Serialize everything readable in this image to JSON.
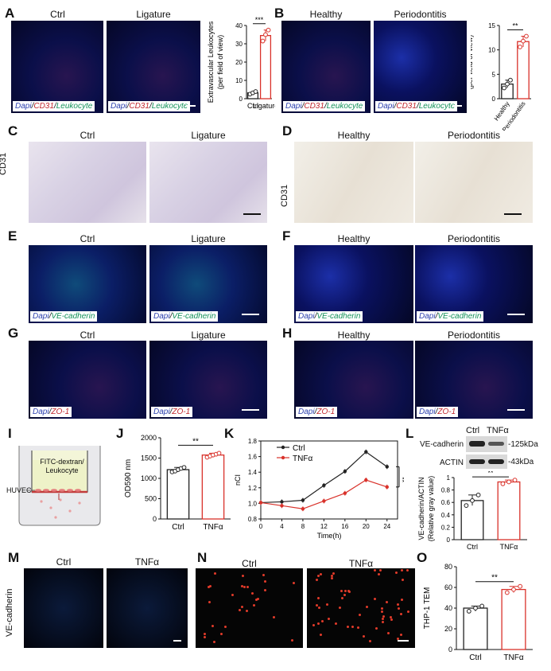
{
  "panels": {
    "A": {
      "letter": "A",
      "titles": [
        "Ctrl",
        "Ligature"
      ],
      "legend": {
        "dapi": "Dapi",
        "cd31": "CD31",
        "leuko": "Leukocyte"
      },
      "chart_ylabel": "Extravascular Leukocytes\n(per field of view)",
      "sig": "***",
      "categories": [
        "Ctrl",
        "Ligature"
      ]
    },
    "B": {
      "letter": "B",
      "titles": [
        "Healthy",
        "Periodontitis"
      ],
      "legend": {
        "dapi": "Dapi",
        "cd31": "CD31",
        "leuko": "Leukocyte"
      },
      "chart_ylabel": "Extravascular Leukocytes\n(per field of view)",
      "sig": "**",
      "categories": [
        "Healthy",
        "Periodontitis"
      ]
    },
    "C": {
      "letter": "C",
      "titles": [
        "Ctrl",
        "Ligature"
      ],
      "side": "CD31"
    },
    "D": {
      "letter": "D",
      "titles": [
        "Healthy",
        "Periodontitis"
      ],
      "side": "CD31"
    },
    "E": {
      "letter": "E",
      "titles": [
        "Ctrl",
        "Ligature"
      ],
      "legend": {
        "dapi": "Dapi",
        "marker": "VE-cadherin"
      }
    },
    "F": {
      "letter": "F",
      "titles": [
        "Healthy",
        "Periodontitis"
      ],
      "legend": {
        "dapi": "Dapi",
        "marker": "VE-cadherin"
      }
    },
    "G": {
      "letter": "G",
      "titles": [
        "Ctrl",
        "Ligature"
      ],
      "legend": {
        "dapi": "Dapi",
        "marker": "ZO-1"
      }
    },
    "H": {
      "letter": "H",
      "titles": [
        "Healthy",
        "Periodontitis"
      ],
      "legend": {
        "dapi": "Dapi",
        "marker": "ZO-1"
      }
    },
    "I": {
      "letter": "I",
      "label_fitc": "FITC-dextran/\nLeukocyte",
      "label_huvec": "HUVEC"
    },
    "J": {
      "letter": "J",
      "ylabel": "OD590 nm",
      "sig": "**",
      "categories": [
        "Ctrl",
        "TNFα"
      ]
    },
    "K": {
      "letter": "K",
      "ylabel": "nCI",
      "xlabel": "Time(h)",
      "legend": [
        "Ctrl",
        "TNFα"
      ],
      "sig": "**"
    },
    "L": {
      "letter": "L",
      "blot_cols": [
        "Ctrl",
        "TNFα"
      ],
      "blot_rows": [
        "VE-cadherin",
        "ACTIN"
      ],
      "blot_sizes": [
        "-125kDa",
        "-43kDa"
      ],
      "ylabel": "VE-cadherin/ACTIN\n(Relative gray value)",
      "sig": "**",
      "categories": [
        "Ctrl",
        "TNFα"
      ]
    },
    "M": {
      "letter": "M",
      "titles": [
        "Ctrl",
        "TNFα"
      ],
      "side": "VE-cadherin"
    },
    "N": {
      "letter": "N",
      "titles": [
        "Ctrl",
        "TNFα"
      ]
    },
    "O": {
      "letter": "O",
      "ylabel": "THP-1 TEM",
      "sig": "**",
      "categories": [
        "Ctrl",
        "TNFα"
      ]
    }
  },
  "chart_data": [
    {
      "id": "A",
      "type": "bar",
      "categories": [
        "Ctrl",
        "Ligature"
      ],
      "values": [
        3.2,
        34.5
      ],
      "points": [
        [
          2.5,
          3.2,
          3.9
        ],
        [
          31.5,
          35,
          37.5
        ]
      ],
      "ylim": [
        0,
        40
      ],
      "yticks": [
        0,
        10,
        20,
        30,
        40
      ],
      "ylabel": "Extravascular Leukocytes (per field of view)",
      "colors": [
        "#222222",
        "#d9322b"
      ]
    },
    {
      "id": "B",
      "type": "bar",
      "categories": [
        "Healthy",
        "Periodontitis"
      ],
      "values": [
        3,
        11.7
      ],
      "points": [
        [
          2.2,
          3,
          3.8
        ],
        [
          10.6,
          11.8,
          12.8
        ]
      ],
      "ylim": [
        0,
        15
      ],
      "yticks": [
        0,
        5,
        10,
        15
      ],
      "ylabel": "Extravascular Leukocytes (per field of view)",
      "colors": [
        "#222222",
        "#d9322b"
      ]
    },
    {
      "id": "J",
      "type": "bar",
      "categories": [
        "Ctrl",
        "TNFα"
      ],
      "values": [
        1215,
        1575
      ],
      "points": [
        [
          1160,
          1180,
          1215,
          1245,
          1270
        ],
        [
          1520,
          1550,
          1575,
          1595,
          1620
        ]
      ],
      "ylim": [
        0,
        2000
      ],
      "yticks": [
        0,
        500,
        1000,
        1500,
        2000
      ],
      "ylabel": "OD590 nm",
      "colors": [
        "#222222",
        "#d9322b"
      ]
    },
    {
      "id": "K",
      "type": "line",
      "x": [
        0,
        4,
        8,
        12,
        16,
        20,
        24
      ],
      "series": [
        {
          "name": "Ctrl",
          "values": [
            1.01,
            1.02,
            1.04,
            1.23,
            1.41,
            1.66,
            1.47
          ],
          "color": "#222222"
        },
        {
          "name": "TNFα",
          "values": [
            1.01,
            0.97,
            0.93,
            1.03,
            1.13,
            1.3,
            1.21
          ],
          "color": "#d9322b"
        }
      ],
      "xlim": [
        0,
        26
      ],
      "xticks": [
        0,
        4,
        8,
        12,
        16,
        20,
        24
      ],
      "ylim": [
        0.8,
        1.8
      ],
      "yticks": [
        0.8,
        1.0,
        1.2,
        1.4,
        1.6,
        1.8
      ],
      "xlabel": "Time(h)",
      "ylabel": "nCI"
    },
    {
      "id": "L",
      "type": "bar",
      "categories": [
        "Ctrl",
        "TNFα"
      ],
      "values": [
        0.63,
        0.93
      ],
      "points": [
        [
          0.55,
          0.63,
          0.72
        ],
        [
          0.9,
          0.93,
          0.96
        ]
      ],
      "ylim": [
        0,
        1.0
      ],
      "yticks": [
        0,
        0.2,
        0.4,
        0.6,
        0.8,
        1.0
      ],
      "ylabel": "VE-cadherin/ACTIN (Relative gray value)",
      "colors": [
        "#222222",
        "#d9322b"
      ]
    },
    {
      "id": "O",
      "type": "bar",
      "categories": [
        "Ctrl",
        "TNFα"
      ],
      "values": [
        40,
        58
      ],
      "points": [
        [
          37,
          40,
          42
        ],
        [
          55,
          58,
          61
        ]
      ],
      "ylim": [
        0,
        80
      ],
      "yticks": [
        0,
        20,
        40,
        60,
        80
      ],
      "ylabel": "THP-1 TEM",
      "colors": [
        "#222222",
        "#d9322b"
      ]
    }
  ]
}
